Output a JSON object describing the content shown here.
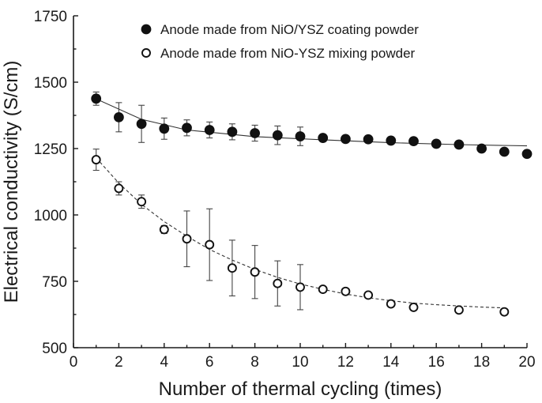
{
  "chart_data": {
    "type": "scatter",
    "title": "",
    "xlabel": "Number of thermal cycling (times)",
    "ylabel": "Electrical conductivity (S/cm)",
    "xlim": [
      0,
      20
    ],
    "ylim": [
      500,
      1750
    ],
    "xticks": [
      0,
      2,
      4,
      6,
      8,
      10,
      12,
      14,
      16,
      18,
      20
    ],
    "yticks": [
      500,
      750,
      1000,
      1250,
      1500,
      1750
    ],
    "grid": false,
    "legend_position": "top-right",
    "series": [
      {
        "name": "Anode made from NiO/YSZ coating powder",
        "marker": "filled-circle",
        "fit": "solid",
        "x": [
          1,
          2,
          3,
          4,
          5,
          6,
          7,
          8,
          9,
          10,
          11,
          12,
          13,
          14,
          15,
          16,
          17,
          18,
          19,
          20
        ],
        "y": [
          1438,
          1368,
          1343,
          1325,
          1328,
          1320,
          1313,
          1308,
          1300,
          1296,
          1290,
          1286,
          1285,
          1280,
          1278,
          1268,
          1265,
          1250,
          1238,
          1230
        ],
        "err": [
          25,
          55,
          70,
          40,
          30,
          30,
          30,
          30,
          35,
          35,
          0,
          0,
          0,
          0,
          0,
          0,
          0,
          0,
          0,
          0
        ],
        "fit_curve": [
          [
            1,
            1437
          ],
          [
            3,
            1360
          ],
          [
            5,
            1320
          ],
          [
            8,
            1295
          ],
          [
            11,
            1283
          ],
          [
            14,
            1272
          ],
          [
            17,
            1265
          ],
          [
            20,
            1260
          ]
        ]
      },
      {
        "name": "Anode made from NiO-YSZ mixing powder",
        "marker": "open-circle",
        "fit": "dashed",
        "x": [
          1,
          2,
          3,
          4,
          5,
          6,
          7,
          8,
          9,
          10,
          11,
          12,
          13,
          14,
          15,
          17,
          19
        ],
        "y": [
          1208,
          1100,
          1050,
          945,
          910,
          888,
          800,
          785,
          742,
          728,
          720,
          712,
          698,
          665,
          652,
          642,
          635
        ],
        "err": [
          40,
          25,
          25,
          15,
          105,
          135,
          105,
          100,
          85,
          85,
          0,
          0,
          0,
          0,
          0,
          0,
          0
        ],
        "fit_curve": [
          [
            1,
            1215
          ],
          [
            2,
            1120
          ],
          [
            3,
            1040
          ],
          [
            4,
            975
          ],
          [
            5,
            920
          ],
          [
            6,
            870
          ],
          [
            7,
            830
          ],
          [
            8,
            795
          ],
          [
            9,
            765
          ],
          [
            10,
            740
          ],
          [
            11,
            720
          ],
          [
            12,
            702
          ],
          [
            13,
            688
          ],
          [
            14,
            677
          ],
          [
            15,
            668
          ],
          [
            16,
            662
          ],
          [
            17,
            657
          ],
          [
            18,
            653
          ],
          [
            19,
            650
          ]
        ]
      }
    ]
  }
}
